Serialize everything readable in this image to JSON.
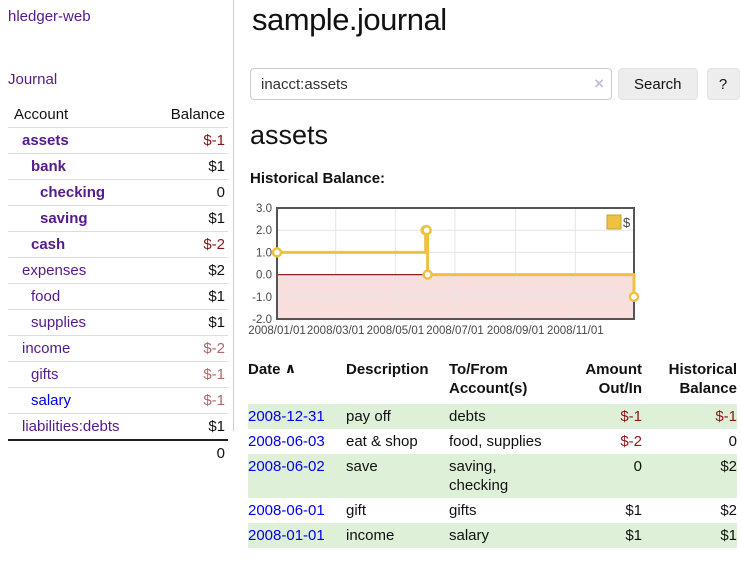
{
  "brand": "hledger-web",
  "nav": {
    "journal_label": "Journal"
  },
  "sidebar": {
    "headers": {
      "account": "Account",
      "balance": "Balance"
    },
    "accounts": [
      {
        "name": "assets",
        "indent": 0,
        "bold": true,
        "balance": "$-1",
        "neg": "dark",
        "link": "purple"
      },
      {
        "name": "bank",
        "indent": 1,
        "bold": true,
        "balance": "$1",
        "neg": "none",
        "link": "purple"
      },
      {
        "name": "checking",
        "indent": 2,
        "bold": true,
        "balance": "0",
        "neg": "none",
        "link": "purple"
      },
      {
        "name": "saving",
        "indent": 2,
        "bold": true,
        "balance": "$1",
        "neg": "none",
        "link": "purple"
      },
      {
        "name": "cash",
        "indent": 1,
        "bold": true,
        "balance": "$-2",
        "neg": "dark",
        "link": "purple"
      },
      {
        "name": "expenses",
        "indent": 0,
        "bold": false,
        "balance": "$2",
        "neg": "none",
        "link": "purple"
      },
      {
        "name": "food",
        "indent": 1,
        "bold": false,
        "balance": "$1",
        "neg": "none",
        "link": "purple"
      },
      {
        "name": "supplies",
        "indent": 1,
        "bold": false,
        "balance": "$1",
        "neg": "none",
        "link": "purple"
      },
      {
        "name": "income",
        "indent": 0,
        "bold": false,
        "balance": "$-2",
        "neg": "light",
        "link": "purple"
      },
      {
        "name": "gifts",
        "indent": 1,
        "bold": false,
        "balance": "$-1",
        "neg": "light",
        "link": "purple"
      },
      {
        "name": "salary",
        "indent": 1,
        "bold": false,
        "balance": "$-1",
        "neg": "light",
        "link": "blue"
      },
      {
        "name": "liabilities:debts",
        "indent": 0,
        "bold": false,
        "balance": "$1",
        "neg": "none",
        "link": "purple"
      }
    ],
    "total": "0"
  },
  "main": {
    "title": "sample.journal",
    "search": {
      "value": "inacct:assets",
      "clear_icon": "×",
      "button_label": "Search",
      "help_label": "?"
    },
    "account_heading": "assets",
    "chart_heading": "Historical Balance:"
  },
  "chart_data": {
    "type": "line",
    "title": "Historical Balance",
    "steps": true,
    "x_start": "2008-01-01",
    "x_end": "2008-12-31",
    "ylim": [
      -2,
      3
    ],
    "series": [
      {
        "name": "$",
        "color": "#edc240",
        "points": [
          [
            "2008-01-01",
            1
          ],
          [
            "2008-06-01",
            2
          ],
          [
            "2008-06-02",
            2
          ],
          [
            "2008-06-03",
            0
          ],
          [
            "2008-12-31",
            -1
          ]
        ]
      }
    ],
    "x_ticks": [
      {
        "date": "2008-01-01",
        "label": "2008/01/01"
      },
      {
        "date": "2008-03-01",
        "label": "2008/03/01"
      },
      {
        "date": "2008-05-01",
        "label": "2008/05/01"
      },
      {
        "date": "2008-07-01",
        "label": "2008/07/01"
      },
      {
        "date": "2008-09-01",
        "label": "2008/09/01"
      },
      {
        "date": "2008-11-01",
        "label": "2008/11/01"
      }
    ],
    "y_ticks": [
      {
        "v": 3,
        "label": "3.0"
      },
      {
        "v": 2,
        "label": "2.0"
      },
      {
        "v": 1,
        "label": "1.0"
      },
      {
        "v": 0,
        "label": "0.0"
      },
      {
        "v": -1,
        "label": "-1.0"
      },
      {
        "v": -2,
        "label": "-2.0"
      }
    ],
    "legend": {
      "position": "top-right",
      "label": "$"
    },
    "grid": true,
    "colors": {
      "grid_line": "#e6e6e6",
      "border": "#545454",
      "negative_region": "#f9dede",
      "zero_line": "#8f1f1f",
      "point_fill": "#ffffff",
      "legend_swatch_border": "#c7a12c",
      "tick_text": "#484848"
    }
  },
  "register": {
    "headers": [
      "Date",
      "Description",
      "To/From Account(s)",
      "Amount Out/In",
      "Historical Balance"
    ],
    "sort_icon": "∧",
    "rows": [
      {
        "date": "2008-12-31",
        "description": "pay off",
        "accounts": "debts",
        "amount": "$-1",
        "amount_neg": true,
        "balance": "$-1",
        "balance_neg": true,
        "shaded": true
      },
      {
        "date": "2008-06-03",
        "description": "eat & shop",
        "accounts": "food, supplies",
        "amount": "$-2",
        "amount_neg": true,
        "balance": "0",
        "balance_neg": false,
        "shaded": false
      },
      {
        "date": "2008-06-02",
        "description": "save",
        "accounts": "saving, checking",
        "amount": "0",
        "amount_neg": false,
        "balance": "$2",
        "balance_neg": false,
        "shaded": true
      },
      {
        "date": "2008-06-01",
        "description": "gift",
        "accounts": "gifts",
        "amount": "$1",
        "amount_neg": false,
        "balance": "$2",
        "balance_neg": false,
        "shaded": false
      },
      {
        "date": "2008-01-01",
        "description": "income",
        "accounts": "salary",
        "amount": "$1",
        "amount_neg": false,
        "balance": "$1",
        "balance_neg": false,
        "shaded": true
      }
    ]
  }
}
